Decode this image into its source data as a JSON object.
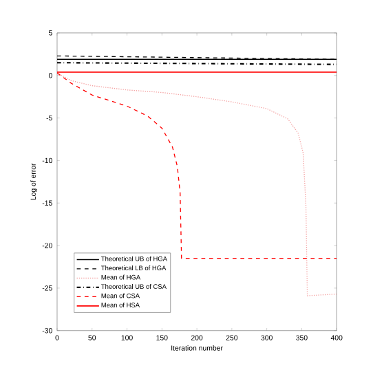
{
  "chart_data": {
    "type": "line",
    "xlabel": "Iteration number",
    "ylabel": "Log of error",
    "xlim": [
      0,
      400
    ],
    "ylim": [
      -30,
      5
    ],
    "xticks": [
      0,
      50,
      100,
      150,
      200,
      250,
      300,
      350,
      400
    ],
    "yticks": [
      5,
      0,
      -5,
      -10,
      -15,
      -20,
      -25,
      -30
    ],
    "legend": "bottom left",
    "grid": false,
    "series": [
      {
        "name": "Theoretical UB of HGA",
        "color": "#000000",
        "line_style": "solid",
        "x": [
          0,
          400
        ],
        "values": [
          1.9,
          1.9
        ]
      },
      {
        "name": "Theoretical LB of HGA",
        "color": "#000000",
        "line_style": "dashed",
        "x": [
          0,
          100,
          200,
          300,
          400
        ],
        "values": [
          2.3,
          2.2,
          2.1,
          2.0,
          1.9
        ]
      },
      {
        "name": "Mean of HGA",
        "color": "#f4a0a0",
        "line_style": "dotted",
        "x": [
          0,
          20,
          50,
          100,
          150,
          200,
          250,
          300,
          330,
          345,
          352,
          356,
          358,
          400
        ],
        "values": [
          0.3,
          -0.6,
          -1.2,
          -1.7,
          -2.0,
          -2.5,
          -3.1,
          -3.9,
          -5.1,
          -6.8,
          -9.1,
          -15.3,
          -25.9,
          -25.7
        ]
      },
      {
        "name": "Theoretical UB of CSA",
        "color": "#000000",
        "line_style": "dashdot",
        "x": [
          0,
          400
        ],
        "values": [
          1.5,
          1.3
        ]
      },
      {
        "name": "Mean of CSA",
        "color": "#ff0000",
        "line_style": "dashed",
        "x": [
          0,
          20,
          50,
          100,
          130,
          150,
          165,
          172,
          176,
          178,
          400
        ],
        "values": [
          0.3,
          -0.9,
          -2.3,
          -3.6,
          -4.8,
          -6.2,
          -8.4,
          -10.7,
          -13.8,
          -21.5,
          -21.5
        ]
      },
      {
        "name": "Mean of HSA",
        "color": "#ff0000",
        "line_style": "solid",
        "x": [
          0,
          400
        ],
        "values": [
          0.4,
          0.4
        ]
      }
    ]
  }
}
